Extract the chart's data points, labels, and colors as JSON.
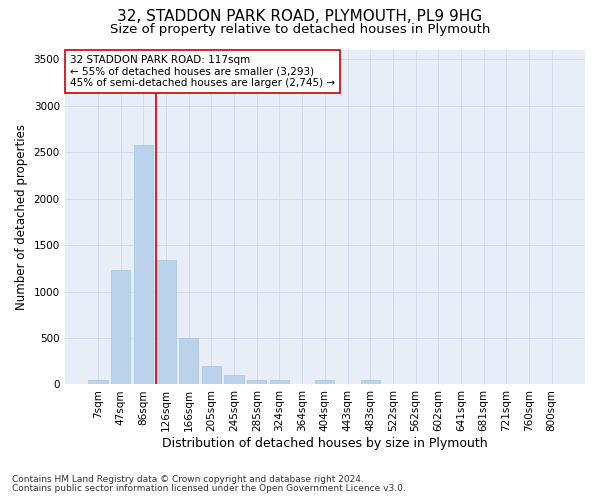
{
  "title1": "32, STADDON PARK ROAD, PLYMOUTH, PL9 9HG",
  "title2": "Size of property relative to detached houses in Plymouth",
  "xlabel": "Distribution of detached houses by size in Plymouth",
  "ylabel": "Number of detached properties",
  "bar_labels": [
    "7sqm",
    "47sqm",
    "86sqm",
    "126sqm",
    "166sqm",
    "205sqm",
    "245sqm",
    "285sqm",
    "324sqm",
    "364sqm",
    "404sqm",
    "443sqm",
    "483sqm",
    "522sqm",
    "562sqm",
    "602sqm",
    "641sqm",
    "681sqm",
    "721sqm",
    "760sqm",
    "800sqm"
  ],
  "bar_heights": [
    50,
    1230,
    2580,
    1340,
    500,
    195,
    105,
    50,
    45,
    0,
    50,
    0,
    50,
    0,
    0,
    0,
    0,
    0,
    0,
    0,
    0
  ],
  "bar_color": "#bad3ea",
  "bar_edgecolor": "#a8c4e0",
  "vline_color": "#cc0000",
  "annotation_line1": "32 STADDON PARK ROAD: 117sqm",
  "annotation_line2": "← 55% of detached houses are smaller (3,293)",
  "annotation_line3": "45% of semi-detached houses are larger (2,745) →",
  "annotation_box_color": "#ffffff",
  "annotation_box_edgecolor": "#cc0000",
  "ylim": [
    0,
    3600
  ],
  "yticks": [
    0,
    500,
    1000,
    1500,
    2000,
    2500,
    3000,
    3500
  ],
  "grid_color": "#cdd8ea",
  "bg_color": "#e8eef8",
  "footer1": "Contains HM Land Registry data © Crown copyright and database right 2024.",
  "footer2": "Contains public sector information licensed under the Open Government Licence v3.0.",
  "title1_fontsize": 11,
  "title2_fontsize": 9.5,
  "xlabel_fontsize": 9,
  "ylabel_fontsize": 8.5,
  "tick_fontsize": 7.5,
  "annotation_fontsize": 7.5,
  "footer_fontsize": 6.5
}
